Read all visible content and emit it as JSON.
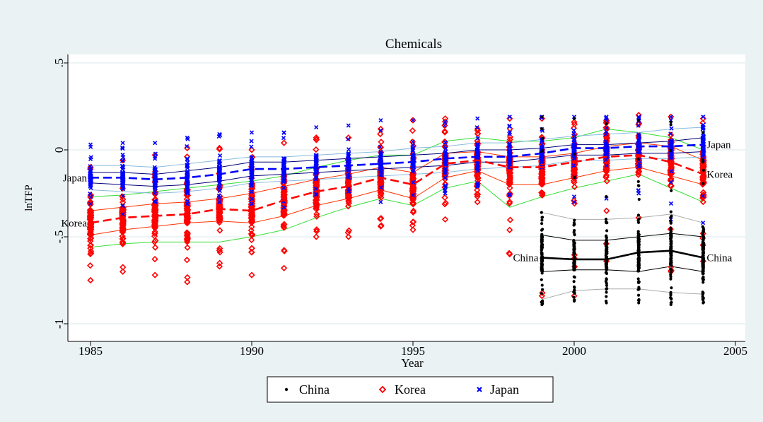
{
  "chart_data": {
    "type": "scatter",
    "title": "Chemicals",
    "xlabel": "Year",
    "ylabel": "lnTFP",
    "xlim": [
      1985,
      2005
    ],
    "ylim": [
      -1,
      0.5
    ],
    "xticks": [
      1985,
      1990,
      1995,
      2000,
      2005
    ],
    "yticks": [
      -1,
      -0.5,
      0,
      0.5
    ],
    "ytick_labels": [
      "-1",
      "-.5",
      "0",
      ".5"
    ],
    "grid": true,
    "legend_position": "bottom",
    "series": [
      {
        "name": "China",
        "marker": "dot",
        "color": "#000000",
        "years": [
          1999,
          2000,
          2001,
          2002,
          2003,
          2004
        ],
        "median": [
          -0.62,
          -0.63,
          -0.63,
          -0.59,
          -0.58,
          -0.62
        ],
        "q25": [
          -0.7,
          -0.69,
          -0.69,
          -0.7,
          -0.67,
          -0.7
        ],
        "q75": [
          -0.49,
          -0.52,
          -0.52,
          -0.5,
          -0.48,
          -0.5
        ],
        "p10": [
          -0.86,
          -0.81,
          -0.8,
          -0.8,
          -0.82,
          -0.83
        ],
        "p90": [
          -0.36,
          -0.4,
          -0.4,
          -0.39,
          -0.37,
          -0.42
        ],
        "min": [
          -0.89,
          -0.87,
          -0.88,
          -0.88,
          -0.89,
          -0.88
        ],
        "max": [
          0.19,
          0.18,
          0.15,
          0.17,
          0.16,
          0.1
        ],
        "end_label": "China"
      },
      {
        "name": "Korea",
        "marker": "diamond",
        "color": "#ff0000",
        "years": [
          1985,
          1986,
          1987,
          1988,
          1989,
          1990,
          1991,
          1992,
          1993,
          1994,
          1995,
          1996,
          1997,
          1998,
          1999,
          2000,
          2001,
          2002,
          2003,
          2004
        ],
        "median": [
          -0.42,
          -0.39,
          -0.38,
          -0.37,
          -0.34,
          -0.35,
          -0.29,
          -0.24,
          -0.21,
          -0.16,
          -0.2,
          -0.08,
          -0.06,
          -0.1,
          -0.1,
          -0.07,
          -0.04,
          -0.03,
          -0.07,
          -0.14
        ],
        "q25": [
          -0.49,
          -0.46,
          -0.44,
          -0.42,
          -0.41,
          -0.42,
          -0.38,
          -0.32,
          -0.28,
          -0.23,
          -0.28,
          -0.16,
          -0.12,
          -0.2,
          -0.2,
          -0.16,
          -0.12,
          -0.1,
          -0.15,
          -0.2
        ],
        "q75": [
          -0.35,
          -0.33,
          -0.31,
          -0.3,
          -0.28,
          -0.25,
          -0.21,
          -0.17,
          -0.14,
          -0.1,
          -0.13,
          -0.02,
          -0.01,
          -0.04,
          -0.04,
          -0.02,
          0.02,
          0.04,
          0.02,
          -0.06
        ],
        "p10": [
          -0.56,
          -0.54,
          -0.53,
          -0.53,
          -0.53,
          -0.5,
          -0.46,
          -0.39,
          -0.33,
          -0.28,
          -0.32,
          -0.22,
          -0.18,
          -0.33,
          -0.27,
          -0.22,
          -0.18,
          -0.14,
          -0.22,
          -0.3
        ],
        "p90": [
          -0.27,
          -0.26,
          -0.24,
          -0.22,
          -0.2,
          -0.18,
          -0.15,
          -0.1,
          -0.06,
          -0.03,
          -0.03,
          0.05,
          0.07,
          0.05,
          0.05,
          0.07,
          0.12,
          0.1,
          0.07,
          0.0
        ],
        "min": [
          -0.75,
          -0.7,
          -0.72,
          -0.76,
          -0.67,
          -0.72,
          -0.68,
          -0.5,
          -0.5,
          -0.44,
          -0.46,
          -0.4,
          -0.3,
          -0.6,
          -0.84,
          -0.84,
          -0.64,
          -0.39,
          -0.7,
          -0.64
        ],
        "max": [
          -0.1,
          -0.06,
          -0.03,
          0.01,
          0.01,
          0.0,
          0.04,
          0.07,
          0.07,
          0.12,
          0.17,
          0.18,
          0.12,
          0.18,
          0.18,
          0.16,
          0.17,
          0.2,
          0.19,
          0.18
        ],
        "end_label": "Korea"
      },
      {
        "name": "Japan",
        "marker": "x",
        "color": "#0000ff",
        "years": [
          1985,
          1986,
          1987,
          1988,
          1989,
          1990,
          1991,
          1992,
          1993,
          1994,
          1995,
          1996,
          1997,
          1998,
          1999,
          2000,
          2001,
          2002,
          2003,
          2004
        ],
        "median": [
          -0.16,
          -0.16,
          -0.17,
          -0.16,
          -0.14,
          -0.11,
          -0.11,
          -0.1,
          -0.09,
          -0.08,
          -0.07,
          -0.05,
          -0.04,
          -0.04,
          -0.02,
          0.01,
          0.01,
          0.02,
          0.02,
          0.03
        ],
        "q25": [
          -0.19,
          -0.2,
          -0.21,
          -0.2,
          -0.18,
          -0.15,
          -0.14,
          -0.13,
          -0.12,
          -0.11,
          -0.1,
          -0.09,
          -0.07,
          -0.07,
          -0.05,
          -0.03,
          -0.03,
          -0.02,
          -0.02,
          -0.01
        ],
        "q75": [
          -0.13,
          -0.13,
          -0.14,
          -0.12,
          -0.1,
          -0.07,
          -0.07,
          -0.06,
          -0.05,
          -0.04,
          -0.03,
          -0.02,
          0.0,
          0.0,
          0.01,
          0.03,
          0.03,
          0.04,
          0.05,
          0.07
        ],
        "p10": [
          -0.23,
          -0.24,
          -0.25,
          -0.24,
          -0.22,
          -0.19,
          -0.18,
          -0.17,
          -0.16,
          -0.15,
          -0.14,
          -0.13,
          -0.11,
          -0.1,
          -0.09,
          -0.06,
          -0.06,
          -0.05,
          -0.05,
          -0.04
        ],
        "p90": [
          -0.09,
          -0.09,
          -0.1,
          -0.08,
          -0.06,
          -0.04,
          -0.04,
          -0.03,
          -0.02,
          -0.01,
          0.01,
          0.02,
          0.04,
          0.04,
          0.06,
          0.08,
          0.09,
          0.1,
          0.12,
          0.13
        ],
        "min": [
          -0.31,
          -0.37,
          -0.3,
          -0.31,
          -0.3,
          -0.31,
          -0.33,
          -0.26,
          -0.24,
          -0.3,
          -0.26,
          -0.25,
          -0.21,
          -0.26,
          -0.1,
          -0.3,
          -0.28,
          -0.25,
          -0.4,
          -0.55
        ],
        "max": [
          0.03,
          0.04,
          0.04,
          0.07,
          0.09,
          0.1,
          0.1,
          0.13,
          0.14,
          0.17,
          0.17,
          0.16,
          0.18,
          0.19,
          0.19,
          0.19,
          0.19,
          0.19,
          0.19,
          0.19
        ],
        "end_label": "Japan"
      }
    ]
  },
  "colors": {
    "plot_background": "#ffffff",
    "page_background": "#eaf2f3",
    "grid": "#dbe7e9",
    "band_outer": "#33dd33",
    "korea_band_inner": "#ff3300",
    "japan_band_inner": "#000077",
    "japan_band_outer": "#88bbdd",
    "china_band_outer": "#aaaaaa"
  }
}
